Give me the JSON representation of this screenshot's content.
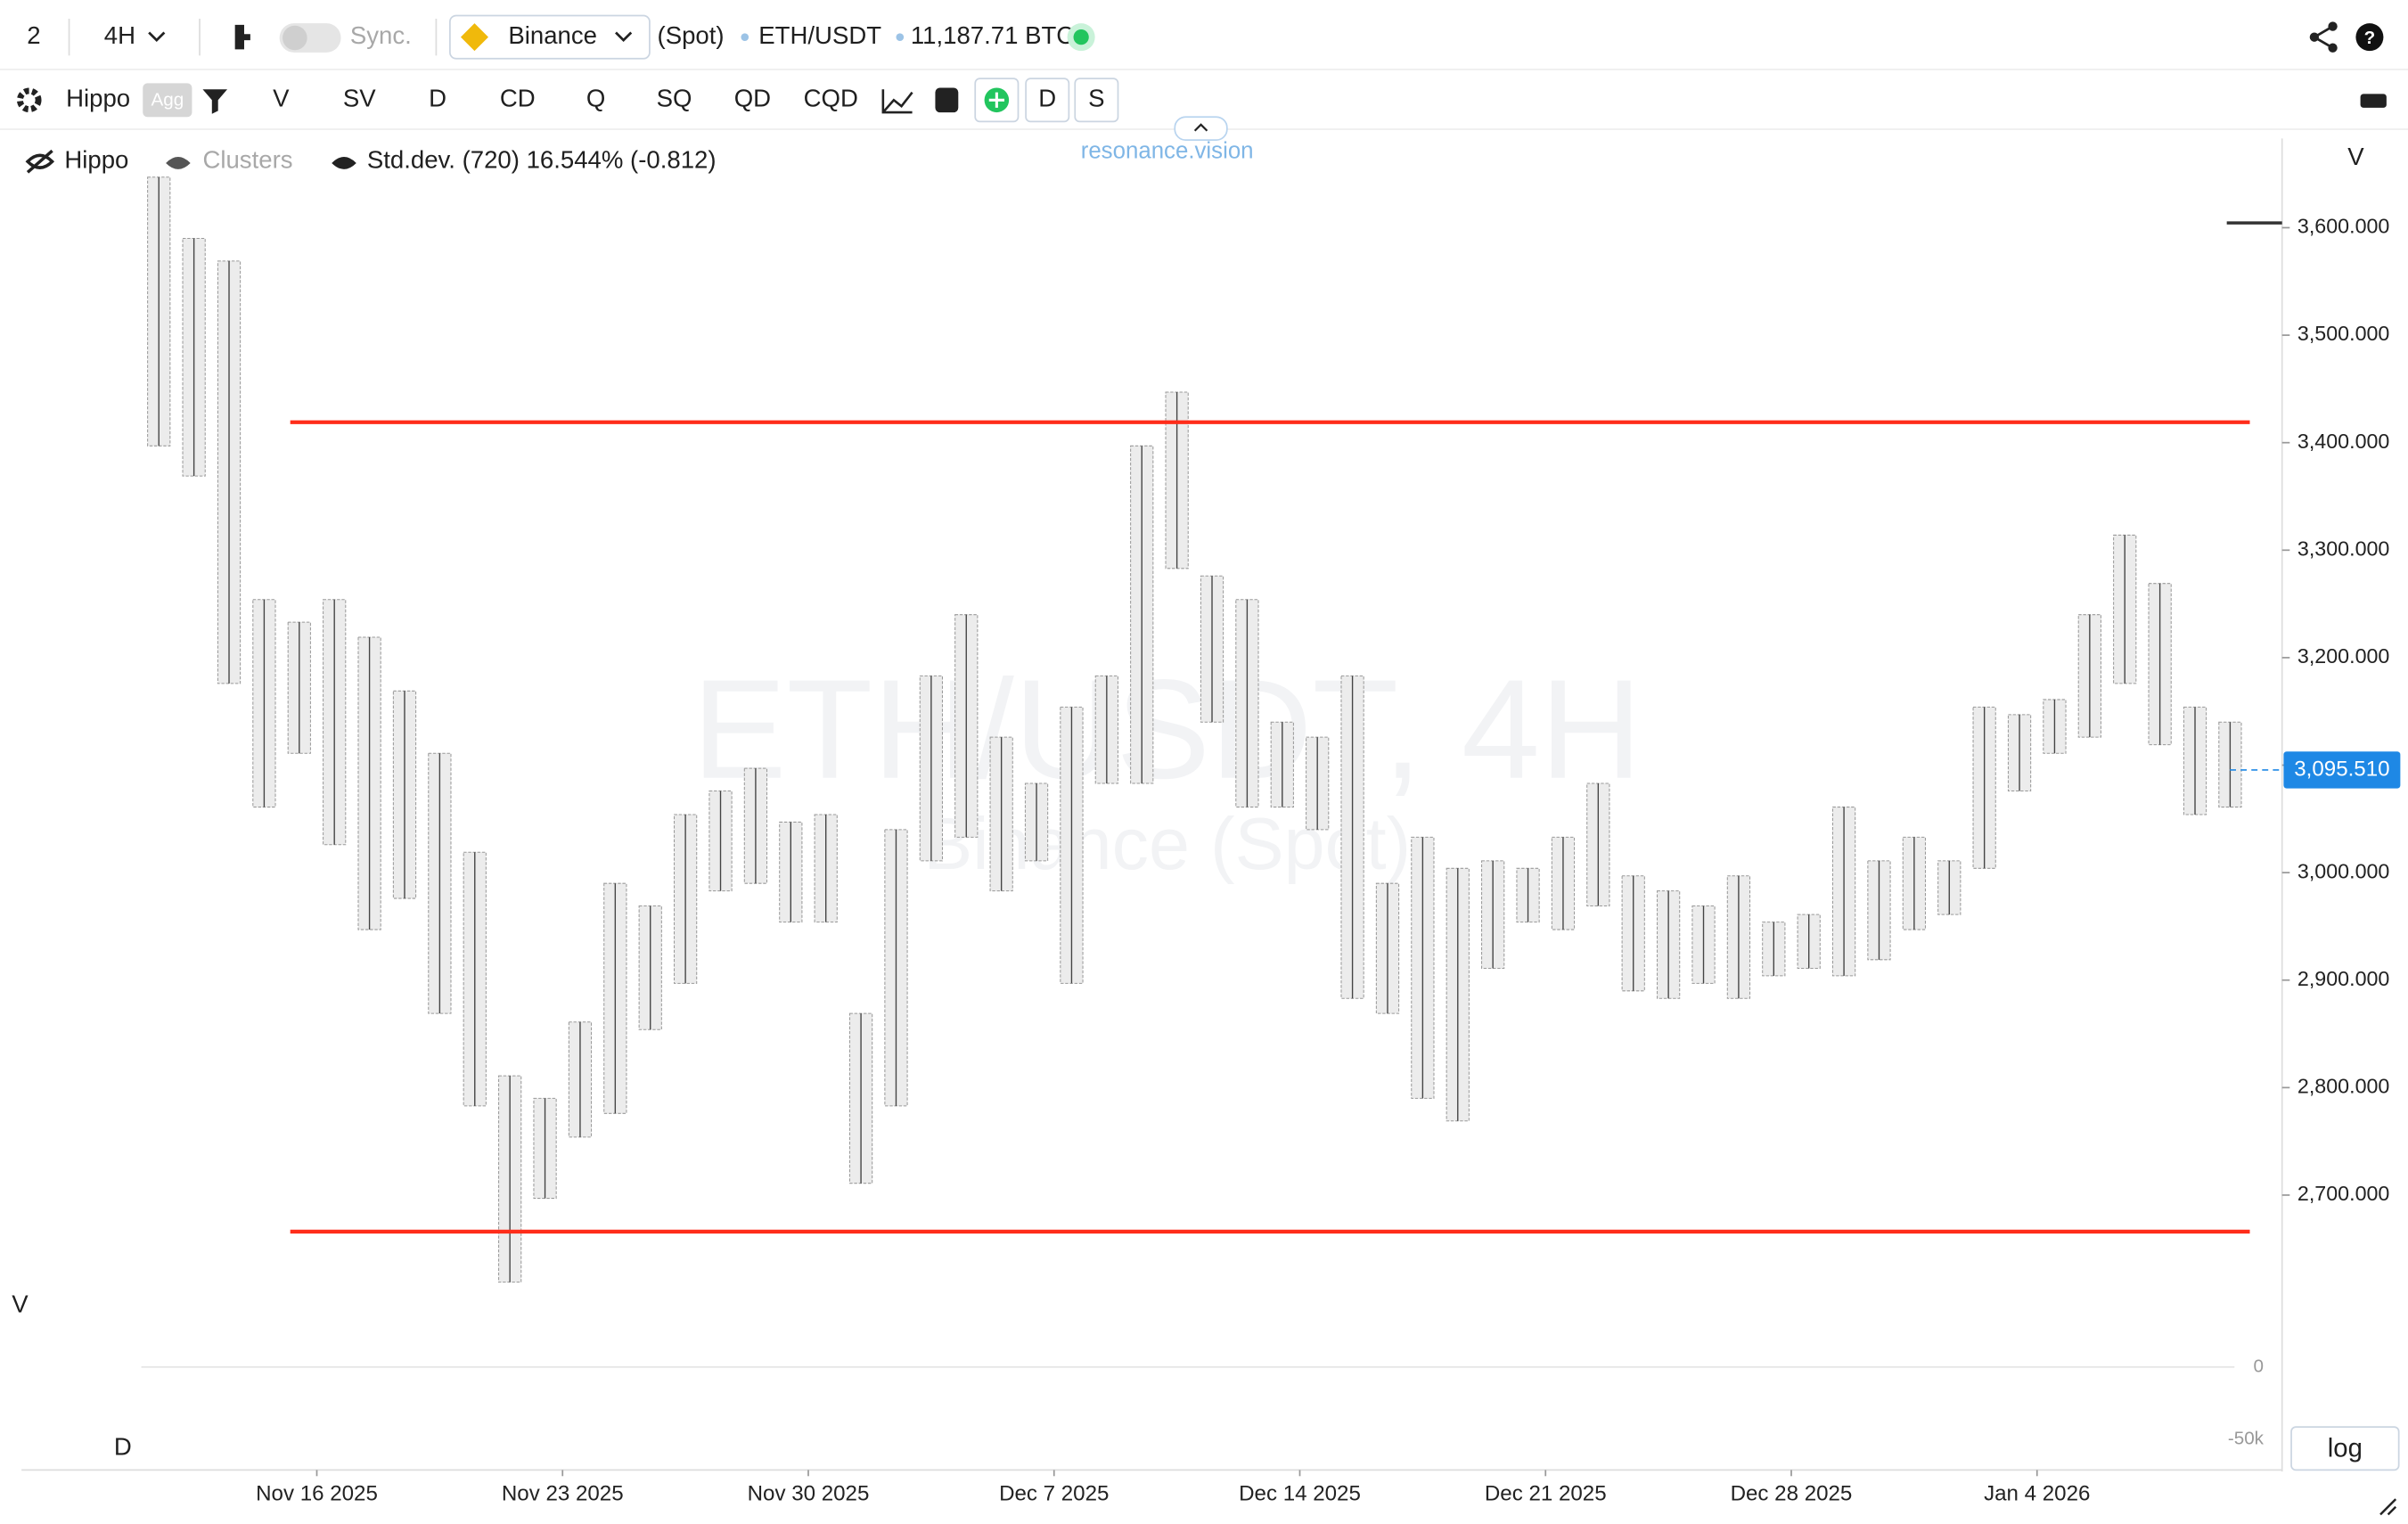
{
  "ui": {
    "top_bar": {
      "layout_count": "2",
      "interval": "4H",
      "sync": "Sync.",
      "exchange": "Binance",
      "market": "(Spot)",
      "symbol": "ETH/USDT",
      "volume": "11,187.71 BTC"
    },
    "toolbar": {
      "indicator": "Hippo",
      "agg": "Agg",
      "buttons": [
        "V",
        "SV",
        "D",
        "CD",
        "Q",
        "SQ",
        "QD",
        "CQD"
      ],
      "toggles": [
        "D",
        "S"
      ]
    },
    "legend": {
      "hippo": "Hippo",
      "clusters": "Clusters",
      "stddev": "Std.dev. (720) 16.544% (-0.812)"
    },
    "brand": "resonance.vision",
    "watermark": {
      "line1": "ETH/USDT, 4H",
      "line2": "Binance (Spot)"
    },
    "volume_label": "V",
    "profile_label": "V",
    "delta_label": "D",
    "log_button": "log"
  },
  "chart_data": {
    "type": "range",
    "categories": [
      null,
      null,
      null,
      null,
      null,
      "Nov 16 2025",
      null,
      null,
      null,
      null,
      null,
      null,
      "Nov 23 2025",
      null,
      null,
      null,
      null,
      null,
      null,
      "Nov 30 2025",
      null,
      null,
      null,
      null,
      null,
      null,
      "Dec 7 2025",
      null,
      null,
      null,
      null,
      null,
      null,
      "Dec 14 2025",
      null,
      null,
      null,
      null,
      null,
      null,
      "Dec 21 2025",
      null,
      null,
      null,
      null,
      null,
      null,
      "Dec 28 2025",
      null,
      null,
      null,
      null,
      null,
      null,
      "Jan 4 2026",
      null,
      null,
      null,
      null,
      null
    ],
    "high": [
      3647,
      3590,
      3569,
      3254,
      3233,
      3254,
      3219,
      3169,
      3111,
      3019,
      2811,
      2790,
      2861,
      2990,
      2969,
      3054,
      3076,
      3097,
      3047,
      3054,
      2869,
      3040,
      3183,
      3240,
      3126,
      3083,
      3154,
      3183,
      3397,
      3447,
      3276,
      3254,
      3140,
      3126,
      3183,
      2990,
      3033,
      3004,
      3011,
      3004,
      3033,
      3083,
      2997,
      2983,
      2969,
      2997,
      2954,
      2961,
      3061,
      3011,
      3033,
      3011,
      3154,
      3147,
      3161,
      3240,
      3314,
      3269,
      3154,
      3140
    ],
    "low": [
      3397,
      3369,
      3176,
      3061,
      3111,
      3026,
      2947,
      2976,
      2869,
      2783,
      2619,
      2697,
      2754,
      2776,
      2854,
      2897,
      2983,
      2990,
      2954,
      2954,
      2711,
      2783,
      3011,
      3033,
      2983,
      3011,
      2897,
      3083,
      3083,
      3283,
      3140,
      3061,
      3061,
      3040,
      2883,
      2869,
      2790,
      2769,
      2911,
      2954,
      2947,
      2969,
      2890,
      2883,
      2897,
      2883,
      2904,
      2911,
      2904,
      2919,
      2947,
      2961,
      3004,
      3076,
      3111,
      3126,
      3176,
      3119,
      3054,
      3061
    ],
    "color": "#9a9a9a",
    "ylim": [
      2620,
      3683
    ],
    "yticks": [
      {
        "value": 2700,
        "label": "2,700.000"
      },
      {
        "value": 2800,
        "label": "2,800.000"
      },
      {
        "value": 2900,
        "label": "2,900.000"
      },
      {
        "value": 3000,
        "label": "3,000.000"
      },
      {
        "value": 3100,
        "label": "3,100.000"
      },
      {
        "value": 3200,
        "label": "3,200.000"
      },
      {
        "value": 3300,
        "label": "3,300.000"
      },
      {
        "value": 3400,
        "label": "3,400.000"
      },
      {
        "value": 3500,
        "label": "3,500.000"
      },
      {
        "value": 3600,
        "label": "3,600.000"
      }
    ],
    "last_price": {
      "value": 3095.51,
      "label": "3,095.510"
    },
    "levels": [
      3419,
      2666
    ],
    "level_color": "#ff2d1a",
    "delta": {
      "ylim": [
        -63800,
        42500
      ],
      "yticks": [
        0,
        {
          "value": -50000,
          "label": "-50k"
        }
      ]
    }
  }
}
